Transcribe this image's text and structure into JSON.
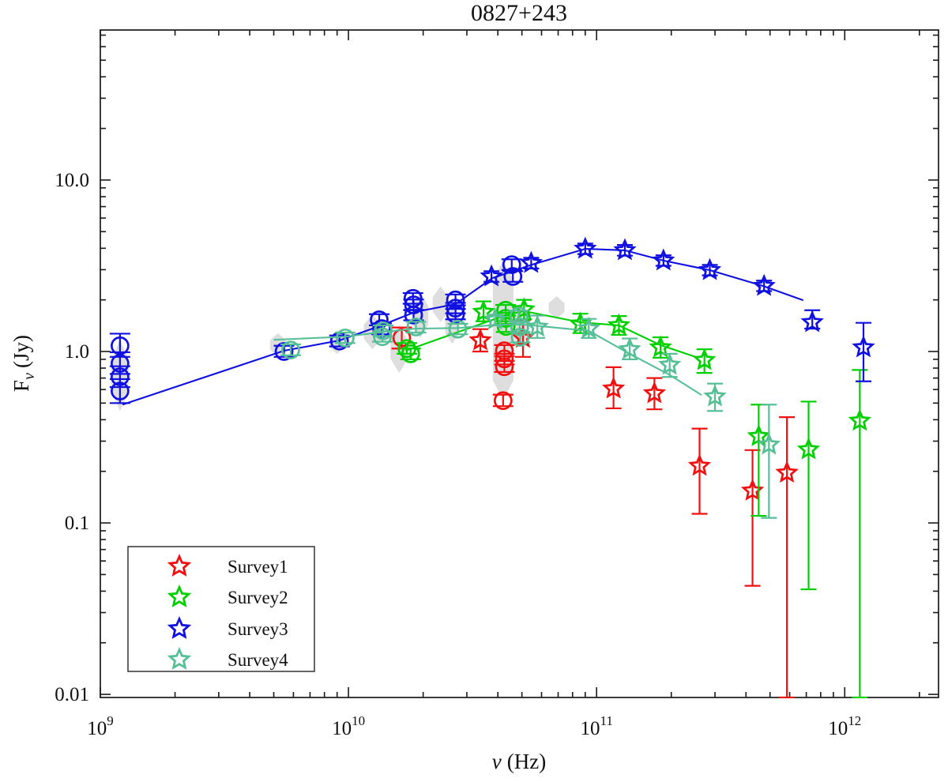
{
  "chart_data": {
    "type": "scatter",
    "title": "0827+243",
    "xlabel_symbol": "ν",
    "xlabel_unit": "(Hz)",
    "ylabel_main": "F",
    "ylabel_sub": "ν",
    "ylabel_unit": "(Jy)",
    "x_axis": "log10 frequency, Hz",
    "y_axis": "log10 flux density, Jy",
    "x_log_range": [
      9,
      12.378
    ],
    "y_log_range": [
      -2.018,
      1.875
    ],
    "x_ticks": [
      {
        "log": 9,
        "base": "10",
        "exp": "9"
      },
      {
        "log": 10,
        "base": "10",
        "exp": "10"
      },
      {
        "log": 11,
        "base": "10",
        "exp": "11"
      },
      {
        "log": 12,
        "base": "10",
        "exp": "12"
      }
    ],
    "y_ticks": [
      {
        "log": -2,
        "label": "0.01"
      },
      {
        "log": -1,
        "label": "0.1"
      },
      {
        "log": 0,
        "label": "1.0"
      },
      {
        "log": 1,
        "label": "10.0"
      }
    ],
    "grid": false,
    "legend_position": "lower-left",
    "shade_color": "#d8d8d8",
    "shaded_diamonds": [
      [
        1200000000.0,
        1.17,
        0.45,
        11
      ],
      [
        5200000000.0,
        1.28,
        0.93,
        10
      ],
      [
        9000000000.0,
        1.33,
        0.97,
        10
      ],
      [
        12500000000.0,
        1.65,
        1.03,
        11
      ],
      [
        16000000000.0,
        1.42,
        0.75,
        11
      ],
      [
        19500000000.0,
        2.2,
        1.2,
        10
      ],
      [
        23500000000.0,
        2.4,
        1.48,
        10
      ],
      [
        26200000000.0,
        1.8,
        1.11,
        9
      ],
      [
        42000000000.0,
        3.4,
        0.52,
        13
      ],
      [
        49000000000.0,
        1.9,
        1.05,
        12
      ],
      [
        69000000000.0,
        2.1,
        1.55,
        10
      ]
    ],
    "series": [
      {
        "name": "Survey1",
        "color": "#f01010",
        "circles": [
          [
            16400000000.0,
            1.2,
            1.04,
            1.38
          ],
          [
            42500000000.0,
            1.01,
            0.94,
            1.09
          ],
          [
            42500000000.0,
            0.905,
            0.84,
            0.97
          ],
          [
            42500000000.0,
            0.815,
            0.76,
            0.88
          ],
          [
            42000000000.0,
            0.517,
            0.48,
            0.56
          ]
        ],
        "stars": [
          [
            34000000000.0,
            1.16,
            1.0,
            1.35
          ],
          [
            50500000000.0,
            1.2,
            0.93,
            1.53
          ],
          [
            117000000000.0,
            0.607,
            0.466,
            0.81
          ],
          [
            171000000000.0,
            0.57,
            0.46,
            0.7
          ],
          [
            260000000000.0,
            0.215,
            0.113,
            0.355
          ],
          [
            425000000000.0,
            0.154,
            0.043,
            0.266
          ],
          [
            585000000000.0,
            0.196,
            0.0096,
            0.414
          ]
        ],
        "line": []
      },
      {
        "name": "Survey2",
        "color": "#00cf00",
        "circles": [
          [
            17200000000.0,
            1.04,
            0.97,
            1.12
          ],
          [
            17800000000.0,
            0.97,
            0.9,
            1.04
          ],
          [
            43000000000.0,
            1.74,
            1.62,
            1.87
          ],
          [
            43000000000.0,
            1.56,
            1.45,
            1.68
          ],
          [
            43200000000.0,
            1.4,
            1.3,
            1.5
          ]
        ],
        "stars": [
          [
            35000000000.0,
            1.7,
            1.5,
            1.96
          ],
          [
            51000000000.0,
            1.76,
            1.54,
            2.0
          ],
          [
            86000000000.0,
            1.45,
            1.28,
            1.66
          ],
          [
            123000000000.0,
            1.42,
            1.25,
            1.61
          ],
          [
            181000000000.0,
            1.055,
            0.92,
            1.21
          ],
          [
            272000000000.0,
            0.89,
            0.75,
            1.03
          ],
          [
            450000000000.0,
            0.32,
            0.11,
            0.49
          ],
          [
            715000000000.0,
            0.268,
            0.041,
            0.51
          ],
          [
            1150000000000.0,
            0.394,
            0.0096,
            0.78
          ]
        ],
        "line": [
          [
            17000000000.0,
            1.01
          ],
          [
            43000000000.0,
            1.63
          ],
          [
            51000000000.0,
            1.72
          ],
          [
            86000000000.0,
            1.48
          ],
          [
            123000000000.0,
            1.42
          ],
          [
            181000000000.0,
            1.09
          ],
          [
            250000000000.0,
            0.93
          ]
        ]
      },
      {
        "name": "Survey3",
        "color": "#1010e0",
        "circles": [
          [
            1200000000.0,
            1.08,
            0.93,
            1.27
          ],
          [
            1200000000.0,
            0.852,
            0.74,
            0.99
          ],
          [
            1200000000.0,
            0.712,
            0.62,
            0.82
          ],
          [
            1200000000.0,
            0.588,
            0.5,
            0.69
          ],
          [
            5500000000.0,
            1.0,
            0.93,
            1.08
          ],
          [
            9200000000.0,
            1.15,
            1.07,
            1.24
          ],
          [
            13300000000.0,
            1.53,
            1.42,
            1.65
          ],
          [
            13600000000.0,
            1.36,
            1.26,
            1.46
          ],
          [
            18200000000.0,
            2.04,
            1.9,
            2.19
          ],
          [
            18300000000.0,
            1.87,
            1.74,
            2.01
          ],
          [
            18300000000.0,
            1.63,
            1.52,
            1.75
          ],
          [
            27000000000.0,
            2.0,
            1.86,
            2.15
          ],
          [
            27000000000.0,
            1.79,
            1.67,
            1.92
          ],
          [
            27000000000.0,
            1.65,
            1.54,
            1.77
          ],
          [
            45500000000.0,
            3.21,
            2.99,
            3.45
          ],
          [
            46000000000.0,
            2.74,
            2.55,
            2.94
          ]
        ],
        "stars": [
          [
            37700000000.0,
            2.74,
            2.55,
            2.94
          ],
          [
            54500000000.0,
            3.28,
            3.05,
            3.52
          ],
          [
            90000000000.0,
            3.97,
            3.7,
            4.26
          ],
          [
            130000000000.0,
            3.89,
            3.62,
            4.18
          ],
          [
            186000000000.0,
            3.39,
            3.16,
            3.64
          ],
          [
            286000000000.0,
            2.98,
            2.78,
            3.2
          ],
          [
            473000000000.0,
            2.41,
            2.25,
            2.59
          ],
          [
            740000000000.0,
            1.48,
            1.36,
            1.74
          ],
          [
            1190000000000.0,
            1.055,
            0.67,
            1.47
          ]
        ],
        "line": [
          [
            1230000000.0,
            0.49
          ],
          [
            5500000000.0,
            1.01
          ],
          [
            9200000000.0,
            1.16
          ],
          [
            13600000000.0,
            1.42
          ],
          [
            18500000000.0,
            1.7
          ],
          [
            27000000000.0,
            1.89
          ],
          [
            38000000000.0,
            2.68
          ],
          [
            55000000000.0,
            3.21
          ],
          [
            90000000000.0,
            3.97
          ],
          [
            130000000000.0,
            3.89
          ],
          [
            186000000000.0,
            3.39
          ],
          [
            286000000000.0,
            2.98
          ],
          [
            470000000000.0,
            2.41
          ],
          [
            680000000000.0,
            1.99
          ]
        ]
      },
      {
        "name": "Survey4",
        "color": "#57bf97",
        "circles": [
          [
            5850000000.0,
            1.02,
            0.95,
            1.1
          ],
          [
            9700000000.0,
            1.2,
            1.12,
            1.29
          ],
          [
            13800000000.0,
            1.32,
            1.23,
            1.42
          ],
          [
            13700000000.0,
            1.22,
            1.14,
            1.31
          ],
          [
            18700000000.0,
            1.39,
            1.29,
            1.49
          ],
          [
            27600000000.0,
            1.35,
            1.26,
            1.45
          ],
          [
            48600000000.0,
            1.61,
            1.5,
            1.73
          ],
          [
            49000000000.0,
            1.39,
            1.29,
            1.49
          ],
          [
            49200000000.0,
            1.21,
            1.13,
            1.3
          ]
        ],
        "stars": [
          [
            39000000000.0,
            1.53,
            1.42,
            1.64
          ],
          [
            57700000000.0,
            1.39,
            1.2,
            1.62
          ],
          [
            93000000000.0,
            1.36,
            1.2,
            1.55
          ],
          [
            136000000000.0,
            1.03,
            0.9,
            1.19
          ],
          [
            197000000000.0,
            0.835,
            0.71,
            0.97
          ],
          [
            300000000000.0,
            0.546,
            0.45,
            0.65
          ],
          [
            495000000000.0,
            0.286,
            0.107,
            0.49
          ]
        ],
        "line": [
          [
            5000000000.0,
            1.17
          ],
          [
            9700000000.0,
            1.22
          ],
          [
            13800000000.0,
            1.3
          ],
          [
            18700000000.0,
            1.36
          ],
          [
            27600000000.0,
            1.37
          ],
          [
            39000000000.0,
            1.43
          ],
          [
            48600000000.0,
            1.44
          ],
          [
            57700000000.0,
            1.41
          ],
          [
            93000000000.0,
            1.32
          ],
          [
            136000000000.0,
            0.97
          ],
          [
            197000000000.0,
            0.73
          ],
          [
            265000000000.0,
            0.557
          ]
        ]
      }
    ]
  }
}
